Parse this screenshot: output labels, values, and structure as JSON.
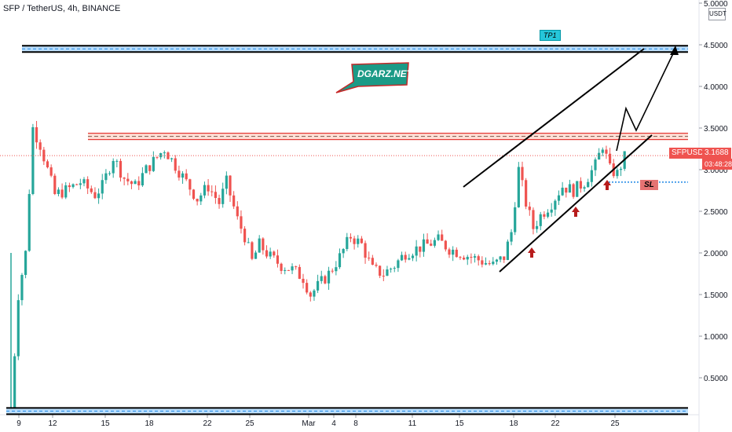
{
  "header": {
    "title": "SFP / TetherUS, 4h, BINANCE"
  },
  "axis": {
    "currency_label": "USDT"
  },
  "chart_data": {
    "type": "candlestick",
    "title": "SFP / TetherUS, 4h, BINANCE",
    "ylim": [
      0,
      5.0
    ],
    "y_ticks": [
      "5.0000",
      "4.5000",
      "4.0000",
      "3.5000",
      "3.0000",
      "2.5000",
      "2.0000",
      "1.5000",
      "1.0000",
      "0.5000"
    ],
    "x_ticks": [
      "9",
      "12",
      "15",
      "18",
      "22",
      "25",
      "Mar",
      "4",
      "8",
      "11",
      "15",
      "18",
      "22",
      "25"
    ],
    "colors": {
      "up": "#26a69a",
      "down": "#ef5350"
    },
    "anchors": [
      [
        0,
        0.1
      ],
      [
        2,
        1.5
      ],
      [
        4,
        2.0
      ],
      [
        6,
        3.5
      ],
      [
        8,
        3.3
      ],
      [
        10,
        3.0
      ],
      [
        12,
        2.7
      ],
      [
        15,
        2.75
      ],
      [
        19,
        2.85
      ],
      [
        23,
        2.7
      ],
      [
        25,
        2.8
      ],
      [
        28,
        3.15
      ],
      [
        31,
        2.9
      ],
      [
        34,
        2.8
      ],
      [
        37,
        3.0
      ],
      [
        40,
        3.15
      ],
      [
        42,
        3.25
      ],
      [
        45,
        3.05
      ],
      [
        48,
        2.85
      ],
      [
        51,
        2.65
      ],
      [
        54,
        2.8
      ],
      [
        57,
        2.6
      ],
      [
        59,
        2.85
      ],
      [
        62,
        2.4
      ],
      [
        64,
        2.2
      ],
      [
        66,
        1.9
      ],
      [
        68,
        2.1
      ],
      [
        71,
        1.95
      ],
      [
        74,
        1.85
      ],
      [
        77,
        1.8
      ],
      [
        80,
        1.7
      ],
      [
        82,
        1.5
      ],
      [
        84,
        1.6
      ],
      [
        87,
        1.75
      ],
      [
        90,
        1.95
      ],
      [
        93,
        2.2
      ],
      [
        96,
        2.1
      ],
      [
        99,
        1.8
      ],
      [
        102,
        1.75
      ],
      [
        105,
        1.85
      ],
      [
        108,
        2.0
      ],
      [
        111,
        2.05
      ],
      [
        114,
        2.1
      ],
      [
        117,
        2.15
      ],
      [
        120,
        2.05
      ],
      [
        123,
        2.0
      ],
      [
        126,
        1.95
      ],
      [
        129,
        1.9
      ],
      [
        132,
        1.85
      ],
      [
        135,
        1.95
      ],
      [
        137,
        2.25
      ],
      [
        139,
        3.0
      ],
      [
        141,
        2.6
      ],
      [
        143,
        2.3
      ],
      [
        145,
        2.45
      ],
      [
        148,
        2.6
      ],
      [
        151,
        2.8
      ],
      [
        154,
        2.75
      ],
      [
        157,
        2.85
      ],
      [
        160,
        3.05
      ],
      [
        162,
        3.3
      ],
      [
        164,
        3.0
      ],
      [
        166,
        2.95
      ],
      [
        168,
        3.15
      ]
    ],
    "current_price": "3.1688",
    "countdown": "03:48:28",
    "symbol": "SFPUSDT",
    "annotations": {
      "watermark": "DGARZ.NET",
      "target_label": "TP1",
      "stop_label": "SL",
      "tp1_price": 4.45,
      "resistance_price": 3.4,
      "stop_price": 2.85,
      "support_price": 0.1
    }
  }
}
